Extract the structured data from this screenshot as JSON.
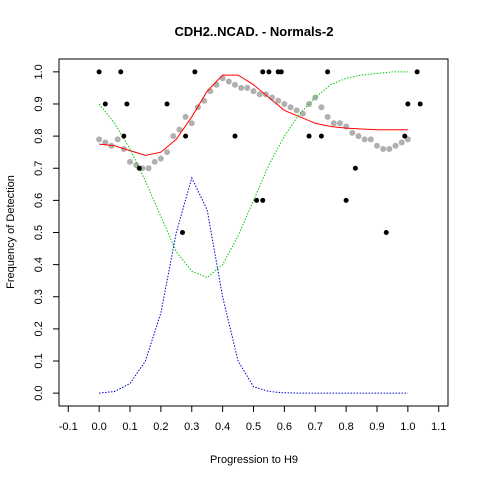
{
  "chart_data": {
    "type": "scatter",
    "title": "CDH2..NCAD. - Normals-2",
    "xlabel": "Progression to H9",
    "ylabel": "Frequency of Detection",
    "xlim": [
      -0.13,
      1.13
    ],
    "ylim": [
      -0.04,
      1.04
    ],
    "grid": false,
    "xticks": [
      "-0.1",
      "0.0",
      "0.1",
      "0.2",
      "0.3",
      "0.4",
      "0.5",
      "0.6",
      "0.7",
      "0.8",
      "0.9",
      "1.0",
      "1.1"
    ],
    "yticks": [
      "0.0",
      "0.1",
      "0.2",
      "0.3",
      "0.4",
      "0.5",
      "0.6",
      "0.7",
      "0.8",
      "0.9",
      "1.0"
    ],
    "colors": {
      "black_points": "#000000",
      "gray_points": "#b0b0b0",
      "red_curve": "#ff0000",
      "green_curve": "#00cc00",
      "blue_curve": "#0000cc"
    },
    "series": [
      {
        "style": "black_points",
        "x": [
          0.0,
          0.02,
          0.07,
          0.08,
          0.09,
          0.13,
          0.22,
          0.27,
          0.28,
          0.31,
          0.44,
          0.51,
          0.53,
          0.53,
          0.55,
          0.58,
          0.59,
          0.68,
          0.72,
          0.74,
          0.8,
          0.83,
          0.93,
          0.99,
          1.0,
          1.03,
          1.04
        ],
        "y": [
          1.0,
          0.9,
          1.0,
          0.8,
          0.9,
          0.7,
          0.9,
          0.5,
          0.8,
          1.0,
          0.8,
          0.6,
          1.0,
          0.6,
          1.0,
          1.0,
          1.0,
          0.8,
          0.8,
          1.0,
          0.6,
          0.7,
          0.5,
          0.8,
          0.9,
          1.0,
          0.9
        ]
      },
      {
        "style": "gray_points",
        "x": [
          0.0,
          0.02,
          0.04,
          0.06,
          0.08,
          0.1,
          0.12,
          0.14,
          0.16,
          0.18,
          0.2,
          0.22,
          0.24,
          0.26,
          0.28,
          0.3,
          0.32,
          0.34,
          0.36,
          0.38,
          0.4,
          0.42,
          0.44,
          0.46,
          0.48,
          0.5,
          0.52,
          0.54,
          0.56,
          0.58,
          0.6,
          0.62,
          0.64,
          0.66,
          0.68,
          0.7,
          0.72,
          0.74,
          0.76,
          0.78,
          0.8,
          0.82,
          0.84,
          0.86,
          0.88,
          0.9,
          0.92,
          0.94,
          0.96,
          0.98,
          1.0
        ],
        "y": [
          0.79,
          0.78,
          0.77,
          0.79,
          0.76,
          0.72,
          0.71,
          0.7,
          0.7,
          0.72,
          0.73,
          0.75,
          0.8,
          0.82,
          0.86,
          0.84,
          0.89,
          0.91,
          0.94,
          0.96,
          0.98,
          0.97,
          0.96,
          0.95,
          0.95,
          0.94,
          0.93,
          0.93,
          0.92,
          0.91,
          0.9,
          0.89,
          0.88,
          0.87,
          0.9,
          0.92,
          0.89,
          0.86,
          0.84,
          0.84,
          0.83,
          0.81,
          0.8,
          0.79,
          0.79,
          0.77,
          0.76,
          0.76,
          0.77,
          0.78,
          0.79
        ]
      },
      {
        "style": "red_curve",
        "x": [
          0.0,
          0.05,
          0.1,
          0.15,
          0.2,
          0.25,
          0.3,
          0.35,
          0.4,
          0.45,
          0.5,
          0.55,
          0.6,
          0.65,
          0.7,
          0.75,
          0.8,
          0.85,
          0.9,
          0.95,
          1.0
        ],
        "y": [
          0.775,
          0.77,
          0.755,
          0.74,
          0.75,
          0.79,
          0.86,
          0.94,
          0.99,
          0.99,
          0.96,
          0.92,
          0.88,
          0.86,
          0.84,
          0.83,
          0.825,
          0.822,
          0.82,
          0.82,
          0.82
        ]
      },
      {
        "style": "green_curve",
        "x": [
          0.0,
          0.05,
          0.1,
          0.15,
          0.2,
          0.25,
          0.3,
          0.35,
          0.4,
          0.45,
          0.5,
          0.55,
          0.6,
          0.65,
          0.7,
          0.75,
          0.8,
          0.85,
          0.9,
          0.95,
          1.0
        ],
        "y": [
          0.9,
          0.84,
          0.76,
          0.66,
          0.55,
          0.44,
          0.38,
          0.36,
          0.4,
          0.49,
          0.6,
          0.71,
          0.8,
          0.87,
          0.92,
          0.96,
          0.98,
          0.99,
          0.995,
          1.0,
          1.0
        ]
      },
      {
        "style": "blue_curve",
        "x": [
          0.0,
          0.05,
          0.1,
          0.15,
          0.2,
          0.25,
          0.3,
          0.35,
          0.4,
          0.45,
          0.5,
          0.55,
          0.6,
          0.65,
          0.7,
          0.75,
          0.8,
          0.85,
          0.9,
          0.95,
          1.0
        ],
        "y": [
          0.0,
          0.005,
          0.03,
          0.1,
          0.25,
          0.5,
          0.67,
          0.57,
          0.3,
          0.1,
          0.02,
          0.005,
          0.001,
          0.0,
          0.0,
          0.0,
          0.0,
          0.0,
          0.0,
          0.0,
          0.0
        ]
      }
    ]
  }
}
